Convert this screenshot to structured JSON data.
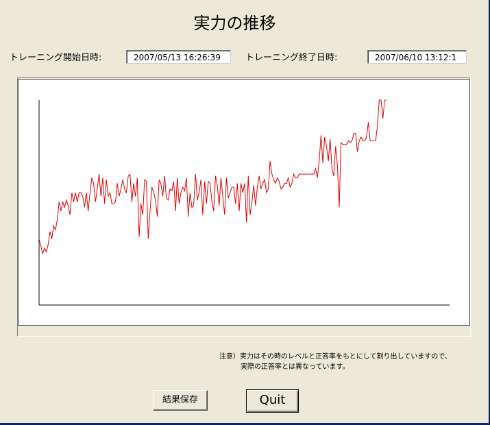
{
  "window": {
    "title": "実力の推移"
  },
  "training": {
    "start_label": "トレーニング開始日時:",
    "start_value": "2007/05/13 16:26:39",
    "end_label": "トレーニング終了日時:",
    "end_value": "2007/06/10 13:12:1"
  },
  "chart_data": {
    "type": "line",
    "title": "",
    "xlabel": "",
    "ylabel": "",
    "grid": false,
    "legend": "none",
    "line_color": "#e00000",
    "ylim": [
      0,
      100
    ],
    "series": [
      {
        "values": [
          25,
          21,
          17,
          20,
          18,
          22,
          29,
          25,
          32,
          30,
          35,
          45,
          40,
          45,
          42,
          46,
          43,
          38,
          50,
          45,
          50,
          45,
          50,
          50,
          48,
          42,
          50,
          40,
          50,
          58,
          55,
          45,
          52,
          60,
          48,
          58,
          44,
          57,
          48,
          50,
          44,
          44,
          45,
          55,
          48,
          52,
          57,
          52,
          50,
          59,
          60,
          45,
          55,
          48,
          58,
          26,
          44,
          38,
          57,
          56,
          25,
          40,
          53,
          50,
          46,
          37,
          57,
          55,
          48,
          59,
          47,
          46,
          52,
          51,
          56,
          40,
          58,
          44,
          50,
          53,
          51,
          58,
          37,
          50,
          42,
          43,
          60,
          46,
          50,
          57,
          38,
          56,
          44,
          56,
          55,
          45,
          40,
          59,
          54,
          43,
          58,
          48,
          38,
          58,
          47,
          50,
          53,
          53,
          44,
          55,
          40,
          55,
          50,
          55,
          34,
          59,
          38,
          45,
          54,
          43,
          53,
          59,
          52,
          55,
          57,
          50,
          52,
          67,
          60,
          57,
          55,
          58,
          56,
          52,
          53,
          55,
          55,
          58,
          53,
          55,
          60,
          58,
          58,
          60,
          60,
          60,
          60,
          60,
          60,
          60,
          60,
          60,
          63,
          58,
          67,
          81,
          66,
          80,
          75,
          67,
          79,
          63,
          59,
          75,
          65,
          42,
          77,
          76,
          76,
          76,
          78,
          77,
          78,
          82,
          82,
          72,
          78,
          80,
          78,
          78,
          80,
          88,
          78,
          78,
          78,
          78,
          86,
          100,
          100,
          90,
          100,
          100
        ]
      }
    ]
  },
  "note": {
    "line1": "注意）実力はその時のレベルと正答率をもとにして割り出していますので、",
    "line2": "実際の正答率とは異なっています。"
  },
  "buttons": {
    "save_label": "結果保存",
    "quit_label": "Quit"
  }
}
